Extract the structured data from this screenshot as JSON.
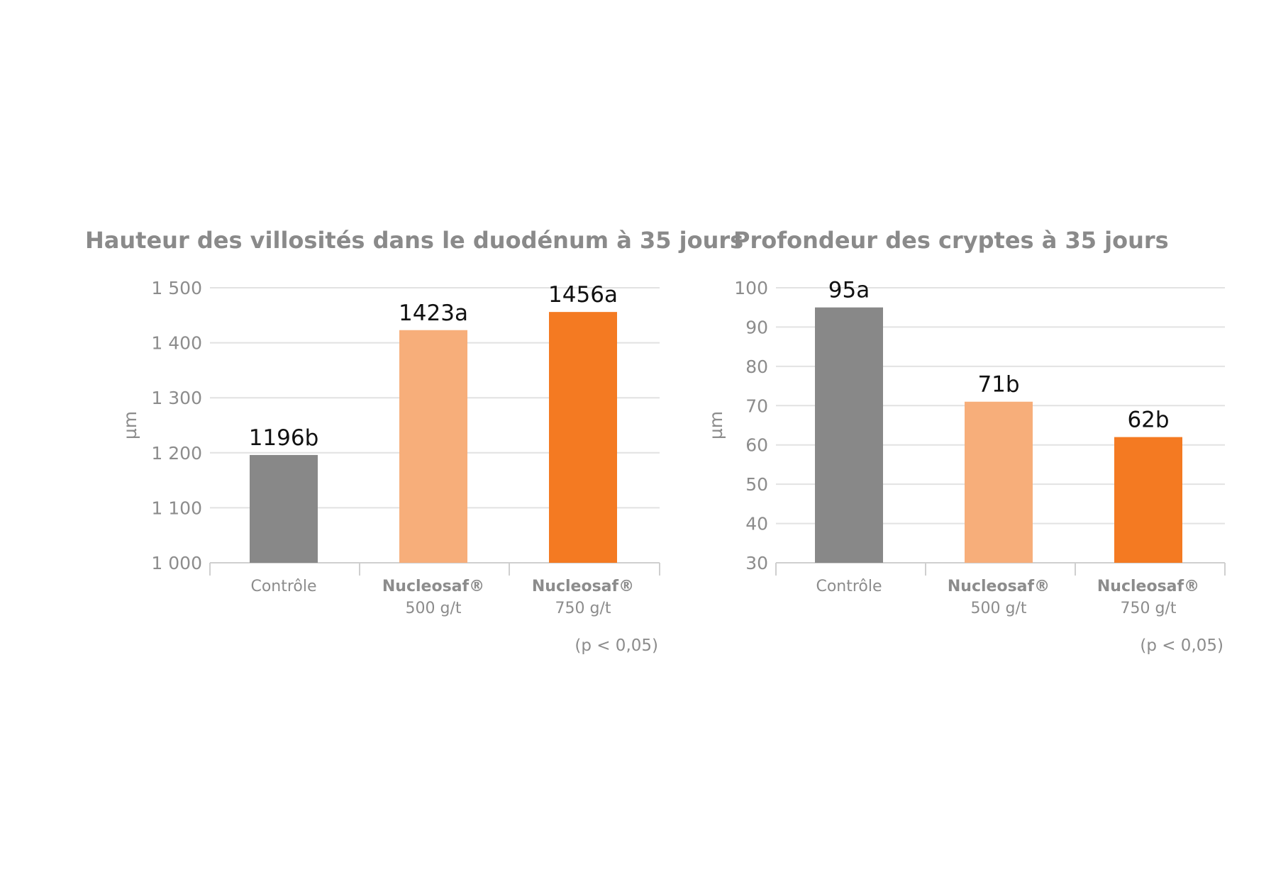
{
  "chart_data": [
    {
      "type": "bar",
      "title": "Hauteur des villosités dans le duodénum à 35 jours",
      "ylabel": "µm",
      "ylim": [
        1000,
        1500
      ],
      "yticks": [
        1000,
        1100,
        1200,
        1300,
        1400,
        1500
      ],
      "ytick_labels": [
        "1 000",
        "1 100",
        "1 200",
        "1 300",
        "1 400",
        "1 500"
      ],
      "grid": true,
      "categories": [
        {
          "main": "Contrôle",
          "bold": false,
          "sub": ""
        },
        {
          "main": "Nucleosaf®",
          "bold": true,
          "sub": "500 g/t"
        },
        {
          "main": "Nucleosaf®",
          "bold": true,
          "sub": "750 g/t"
        }
      ],
      "values": [
        1196,
        1423,
        1456
      ],
      "data_labels": [
        "1196b",
        "1423a",
        "1456a"
      ],
      "colors": [
        "#888888",
        "#f7ae7a",
        "#f47a22"
      ],
      "note": "(p < 0,05)"
    },
    {
      "type": "bar",
      "title": "Profondeur des cryptes à 35 jours",
      "ylabel": "µm",
      "ylim": [
        30,
        100
      ],
      "yticks": [
        30,
        40,
        50,
        60,
        70,
        80,
        90,
        100
      ],
      "ytick_labels": [
        "30",
        "40",
        "50",
        "60",
        "70",
        "80",
        "90",
        "100"
      ],
      "grid": true,
      "categories": [
        {
          "main": "Contrôle",
          "bold": false,
          "sub": ""
        },
        {
          "main": "Nucleosaf®",
          "bold": true,
          "sub": "500 g/t"
        },
        {
          "main": "Nucleosaf®",
          "bold": true,
          "sub": "750 g/t"
        }
      ],
      "values": [
        95,
        71,
        62
      ],
      "data_labels": [
        "95a",
        "71b",
        "62b"
      ],
      "colors": [
        "#888888",
        "#f7ae7a",
        "#f47a22"
      ],
      "note": "(p < 0,05)"
    }
  ]
}
